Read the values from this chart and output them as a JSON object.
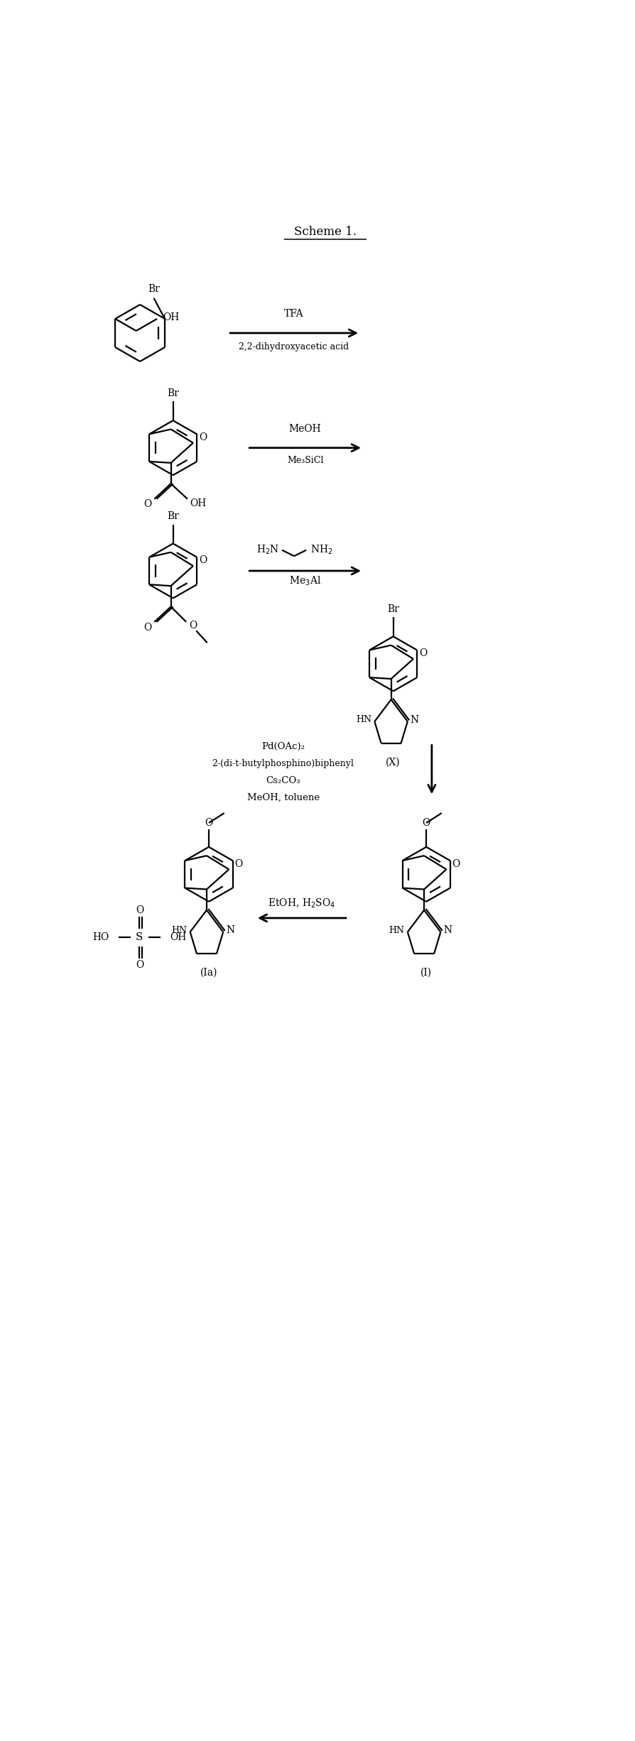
{
  "title": "Scheme 1.",
  "bg": "#ffffff",
  "s1r1": "TFA",
  "s1r2": "2,2-dihydroxyacetic acid",
  "s2r1": "MeOH",
  "s2r2": "Me₃SiCl",
  "s3r2": "Me₃Al",
  "s4label": "(X)",
  "s4r1": "Pd(OAc)₂",
  "s4r2": "2-(di-t-butylphosphino)biphenyl",
  "s4r3": "Cs₂CO₃",
  "s4r4": "MeOH, toluene",
  "s5r": "EtOH, H₂SO₄",
  "lIa": "(Ia)",
  "lI": "(I)"
}
